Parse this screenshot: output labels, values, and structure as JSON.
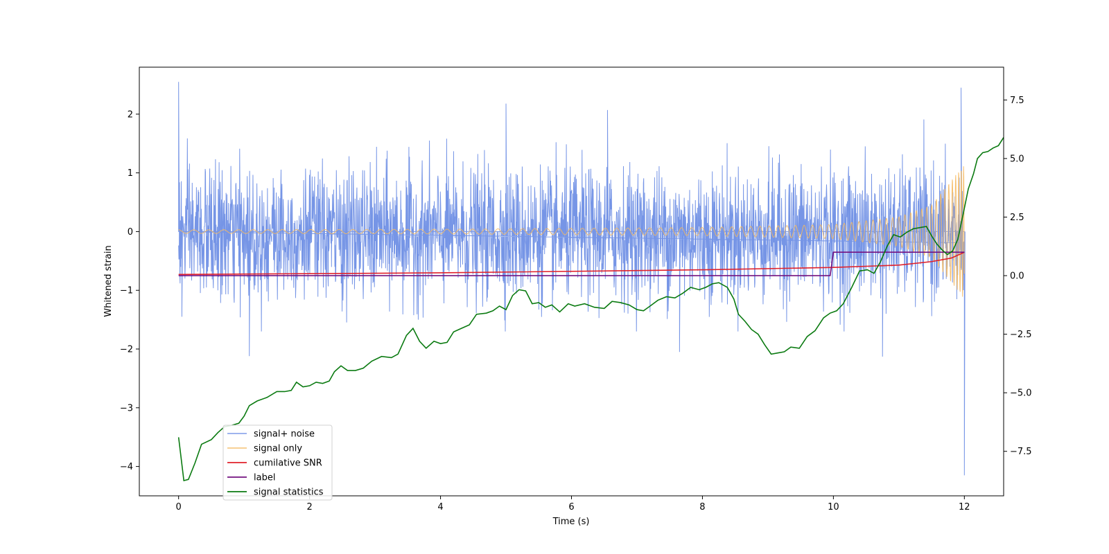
{
  "chart_data": {
    "type": "line",
    "title": "",
    "xlabel": "Time (s)",
    "ylabel": "Whitened strain",
    "y2label": "",
    "xlim": [
      -0.6,
      12.6
    ],
    "ylim": [
      -4.5,
      2.8
    ],
    "y2lim": [
      -9.4,
      8.9
    ],
    "x_ticks": [
      0,
      2,
      4,
      6,
      8,
      10,
      12
    ],
    "y_ticks": [
      -4,
      -3,
      -2,
      -1,
      0,
      1,
      2
    ],
    "y2_ticks": [
      -7.5,
      -5.0,
      -2.5,
      0.0,
      2.5,
      5.0,
      7.5
    ],
    "x_tick_labels": [
      "0",
      "2",
      "4",
      "6",
      "8",
      "10",
      "12"
    ],
    "y_tick_labels": [
      "−4",
      "−3",
      "−2",
      "−1",
      "0",
      "1",
      "2"
    ],
    "y2_tick_labels": [
      "−7.5",
      "−5.0",
      "−2.5",
      "0.0",
      "2.5",
      "5.0",
      "7.5"
    ],
    "legend_position": "lower-left",
    "grid": false,
    "colors": {
      "noise": "#6f8fe5",
      "signal": "#f5b960",
      "snr": "#e0202a",
      "label": "#73117f",
      "stats": "#0a7a10"
    },
    "series": [
      {
        "name": "signal+ noise",
        "axis": "left",
        "x_range": [
          0,
          12
        ],
        "amplitude_typical": 1.0,
        "extremes": [
          {
            "x": 0.0,
            "y": 2.55
          },
          {
            "x": 0.05,
            "y": -1.45
          },
          {
            "x": 1.08,
            "y": -2.12
          },
          {
            "x": 5.0,
            "y": 2.18
          },
          {
            "x": 6.55,
            "y": 2.07
          },
          {
            "x": 7.65,
            "y": -2.05
          },
          {
            "x": 10.75,
            "y": -2.13
          },
          {
            "x": 11.95,
            "y": 2.45
          },
          {
            "x": 12.0,
            "y": -4.15
          }
        ]
      },
      {
        "name": "signal only",
        "axis": "left",
        "x_range": [
          0,
          12
        ],
        "envelope": [
          {
            "x": 0.0,
            "y": 0.03
          },
          {
            "x": 4.0,
            "y": 0.04
          },
          {
            "x": 8.0,
            "y": 0.07
          },
          {
            "x": 10.0,
            "y": 0.12
          },
          {
            "x": 11.0,
            "y": 0.25
          },
          {
            "x": 11.5,
            "y": 0.45
          },
          {
            "x": 12.0,
            "y": 1.15
          }
        ]
      },
      {
        "name": "cumilative SNR",
        "axis": "right",
        "points": [
          {
            "x": 0.0,
            "y": 0.05
          },
          {
            "x": 4.0,
            "y": 0.12
          },
          {
            "x": 8.0,
            "y": 0.25
          },
          {
            "x": 10.0,
            "y": 0.35
          },
          {
            "x": 11.0,
            "y": 0.45
          },
          {
            "x": 11.5,
            "y": 0.6
          },
          {
            "x": 11.8,
            "y": 0.75
          },
          {
            "x": 12.0,
            "y": 1.0
          }
        ]
      },
      {
        "name": "label",
        "axis": "right",
        "points": [
          {
            "x": 0.0,
            "y": 0.0
          },
          {
            "x": 9.95,
            "y": 0.0
          },
          {
            "x": 10.0,
            "y": 1.0
          },
          {
            "x": 12.0,
            "y": 1.0
          }
        ]
      },
      {
        "name": "signal statistics",
        "axis": "right",
        "points": [
          {
            "x": 0.0,
            "y": -6.9
          },
          {
            "x": 0.08,
            "y": -8.75
          },
          {
            "x": 0.15,
            "y": -8.7
          },
          {
            "x": 0.25,
            "y": -8.0
          },
          {
            "x": 0.35,
            "y": -7.2
          },
          {
            "x": 0.5,
            "y": -7.0
          },
          {
            "x": 0.6,
            "y": -6.7
          },
          {
            "x": 0.7,
            "y": -6.45
          },
          {
            "x": 0.8,
            "y": -6.4
          },
          {
            "x": 0.92,
            "y": -6.3
          },
          {
            "x": 1.0,
            "y": -6.0
          },
          {
            "x": 1.08,
            "y": -5.55
          },
          {
            "x": 1.2,
            "y": -5.35
          },
          {
            "x": 1.35,
            "y": -5.2
          },
          {
            "x": 1.5,
            "y": -4.95
          },
          {
            "x": 1.62,
            "y": -4.95
          },
          {
            "x": 1.72,
            "y": -4.9
          },
          {
            "x": 1.8,
            "y": -4.55
          },
          {
            "x": 1.9,
            "y": -4.75
          },
          {
            "x": 2.0,
            "y": -4.7
          },
          {
            "x": 2.1,
            "y": -4.55
          },
          {
            "x": 2.2,
            "y": -4.6
          },
          {
            "x": 2.3,
            "y": -4.5
          },
          {
            "x": 2.38,
            "y": -4.1
          },
          {
            "x": 2.48,
            "y": -3.85
          },
          {
            "x": 2.58,
            "y": -4.05
          },
          {
            "x": 2.7,
            "y": -4.05
          },
          {
            "x": 2.82,
            "y": -3.95
          },
          {
            "x": 2.95,
            "y": -3.65
          },
          {
            "x": 3.1,
            "y": -3.45
          },
          {
            "x": 3.25,
            "y": -3.5
          },
          {
            "x": 3.35,
            "y": -3.35
          },
          {
            "x": 3.48,
            "y": -2.55
          },
          {
            "x": 3.58,
            "y": -2.25
          },
          {
            "x": 3.68,
            "y": -2.8
          },
          {
            "x": 3.78,
            "y": -3.1
          },
          {
            "x": 3.9,
            "y": -2.8
          },
          {
            "x": 4.0,
            "y": -2.9
          },
          {
            "x": 4.1,
            "y": -2.85
          },
          {
            "x": 4.2,
            "y": -2.4
          },
          {
            "x": 4.32,
            "y": -2.25
          },
          {
            "x": 4.44,
            "y": -2.1
          },
          {
            "x": 4.55,
            "y": -1.65
          },
          {
            "x": 4.7,
            "y": -1.6
          },
          {
            "x": 4.8,
            "y": -1.5
          },
          {
            "x": 4.9,
            "y": -1.3
          },
          {
            "x": 5.0,
            "y": -1.45
          },
          {
            "x": 5.1,
            "y": -0.85
          },
          {
            "x": 5.2,
            "y": -0.6
          },
          {
            "x": 5.3,
            "y": -0.65
          },
          {
            "x": 5.4,
            "y": -1.2
          },
          {
            "x": 5.5,
            "y": -1.15
          },
          {
            "x": 5.6,
            "y": -1.35
          },
          {
            "x": 5.7,
            "y": -1.25
          },
          {
            "x": 5.82,
            "y": -1.55
          },
          {
            "x": 5.95,
            "y": -1.2
          },
          {
            "x": 6.05,
            "y": -1.3
          },
          {
            "x": 6.2,
            "y": -1.2
          },
          {
            "x": 6.35,
            "y": -1.35
          },
          {
            "x": 6.5,
            "y": -1.4
          },
          {
            "x": 6.62,
            "y": -1.1
          },
          {
            "x": 6.75,
            "y": -1.15
          },
          {
            "x": 6.88,
            "y": -1.25
          },
          {
            "x": 7.0,
            "y": -1.45
          },
          {
            "x": 7.1,
            "y": -1.5
          },
          {
            "x": 7.2,
            "y": -1.3
          },
          {
            "x": 7.32,
            "y": -1.05
          },
          {
            "x": 7.45,
            "y": -0.9
          },
          {
            "x": 7.58,
            "y": -0.95
          },
          {
            "x": 7.7,
            "y": -0.75
          },
          {
            "x": 7.82,
            "y": -0.5
          },
          {
            "x": 7.95,
            "y": -0.6
          },
          {
            "x": 8.05,
            "y": -0.5
          },
          {
            "x": 8.15,
            "y": -0.35
          },
          {
            "x": 8.25,
            "y": -0.3
          },
          {
            "x": 8.38,
            "y": -0.5
          },
          {
            "x": 8.48,
            "y": -1.0
          },
          {
            "x": 8.55,
            "y": -1.65
          },
          {
            "x": 8.65,
            "y": -1.95
          },
          {
            "x": 8.75,
            "y": -2.3
          },
          {
            "x": 8.85,
            "y": -2.5
          },
          {
            "x": 8.95,
            "y": -2.95
          },
          {
            "x": 9.05,
            "y": -3.35
          },
          {
            "x": 9.15,
            "y": -3.3
          },
          {
            "x": 9.25,
            "y": -3.25
          },
          {
            "x": 9.35,
            "y": -3.05
          },
          {
            "x": 9.48,
            "y": -3.1
          },
          {
            "x": 9.6,
            "y": -2.6
          },
          {
            "x": 9.72,
            "y": -2.35
          },
          {
            "x": 9.85,
            "y": -1.8
          },
          {
            "x": 9.95,
            "y": -1.6
          },
          {
            "x": 10.05,
            "y": -1.5
          },
          {
            "x": 10.15,
            "y": -1.2
          },
          {
            "x": 10.28,
            "y": -0.5
          },
          {
            "x": 10.4,
            "y": 0.2
          },
          {
            "x": 10.52,
            "y": 0.25
          },
          {
            "x": 10.62,
            "y": 0.1
          },
          {
            "x": 10.72,
            "y": 0.6
          },
          {
            "x": 10.82,
            "y": 1.25
          },
          {
            "x": 10.92,
            "y": 1.75
          },
          {
            "x": 11.02,
            "y": 1.65
          },
          {
            "x": 11.12,
            "y": 1.85
          },
          {
            "x": 11.22,
            "y": 2.0
          },
          {
            "x": 11.32,
            "y": 2.05
          },
          {
            "x": 11.42,
            "y": 2.1
          },
          {
            "x": 11.5,
            "y": 1.7
          },
          {
            "x": 11.58,
            "y": 1.35
          },
          {
            "x": 11.66,
            "y": 1.1
          },
          {
            "x": 11.74,
            "y": 0.9
          },
          {
            "x": 11.82,
            "y": 1.05
          },
          {
            "x": 11.9,
            "y": 1.55
          },
          {
            "x": 11.98,
            "y": 2.6
          },
          {
            "x": 12.06,
            "y": 3.7
          },
          {
            "x": 12.14,
            "y": 4.35
          },
          {
            "x": 12.2,
            "y": 5.0
          },
          {
            "x": 12.28,
            "y": 5.25
          },
          {
            "x": 12.36,
            "y": 5.3
          },
          {
            "x": 12.44,
            "y": 5.45
          },
          {
            "x": 12.52,
            "y": 5.55
          },
          {
            "x": 12.6,
            "y": 5.9
          }
        ]
      }
    ]
  }
}
